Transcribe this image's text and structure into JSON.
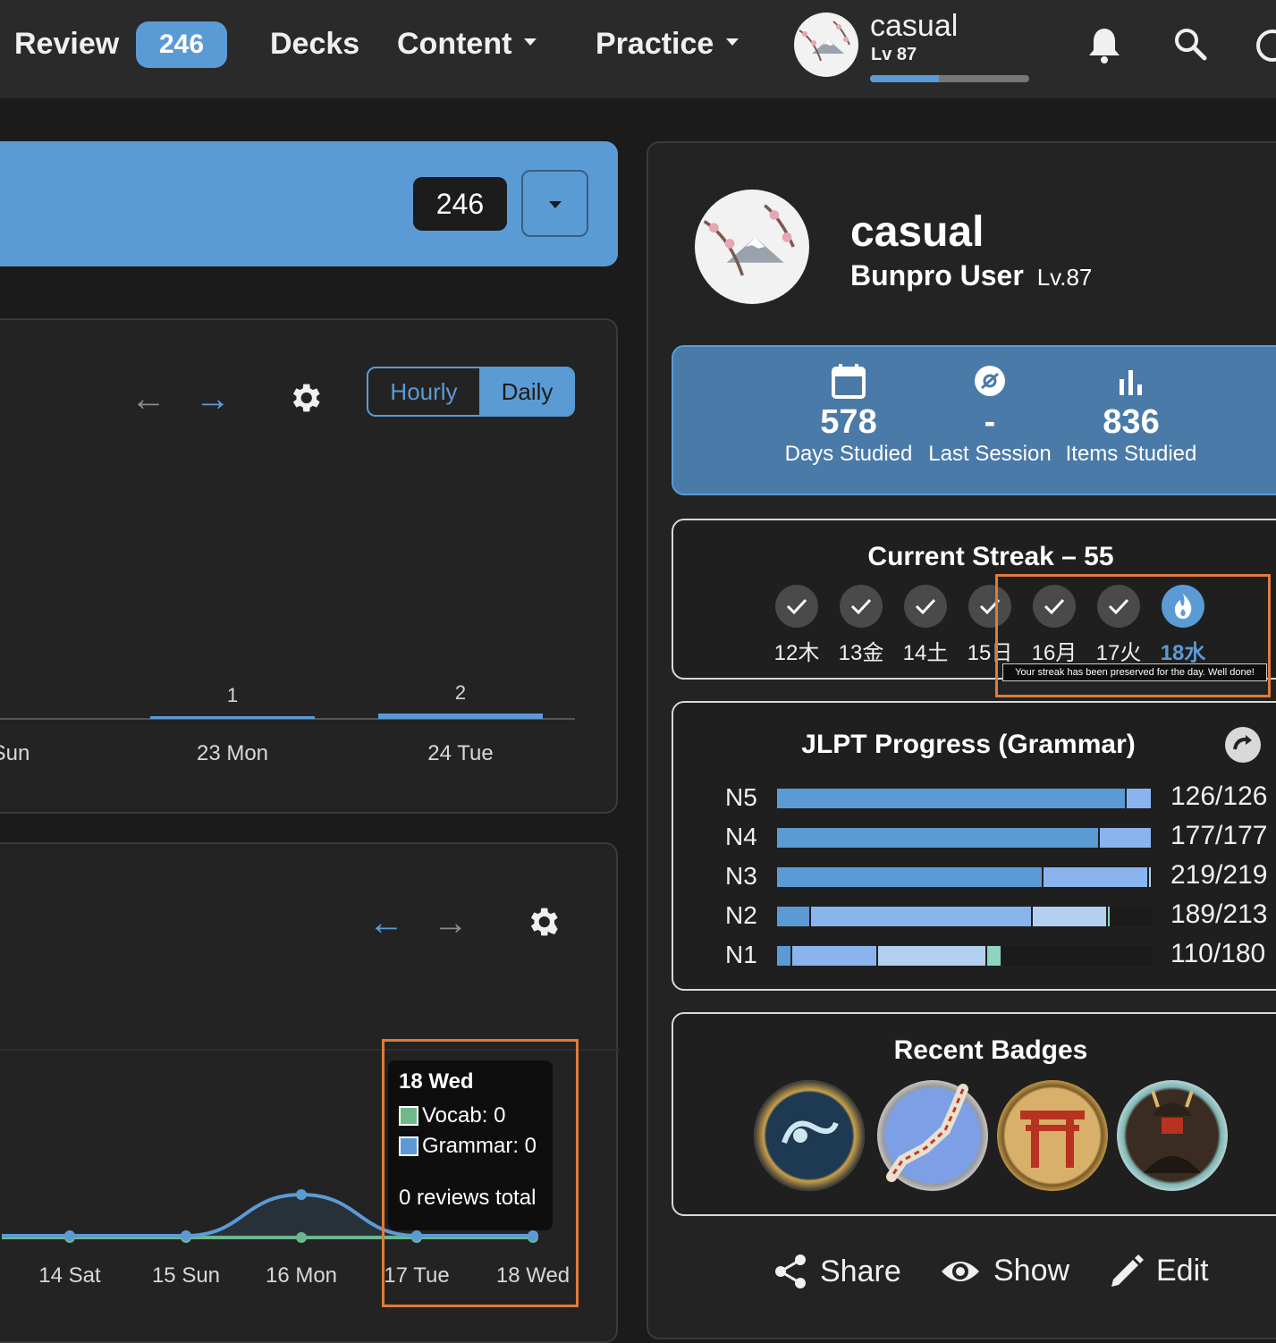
{
  "nav": {
    "review_label": "Review",
    "review_count": "246",
    "decks_label": "Decks",
    "content_label": "Content",
    "practice_label": "Practice",
    "user_name": "casual",
    "user_level": "Lv 87",
    "level_progress": 0.43
  },
  "banner": {
    "count": "246"
  },
  "forecast": {
    "toggle_hourly": "Hourly",
    "toggle_daily": "Daily",
    "active_toggle": "Daily"
  },
  "history": {
    "tooltip_title": "18 Wed",
    "tooltip_vocab": "Vocab: 0",
    "tooltip_grammar": "Grammar: 0",
    "tooltip_total": "0 reviews total"
  },
  "chart_data": [
    {
      "type": "bar",
      "categories": [
        "Sun",
        "23 Mon",
        "24 Tue"
      ],
      "values": [
        0,
        1,
        2
      ],
      "data_labels": [
        "",
        "1",
        "2"
      ]
    },
    {
      "type": "line",
      "x": [
        "14 Sat",
        "15 Sun",
        "16 Mon",
        "17 Tue",
        "18 Wed"
      ],
      "series": [
        {
          "name": "Vocab",
          "values": [
            0,
            0,
            0,
            0,
            0
          ],
          "color": "#6fb88a"
        },
        {
          "name": "Grammar",
          "values": [
            0,
            0,
            1,
            0,
            0
          ],
          "color": "#5b9bd5"
        }
      ]
    }
  ],
  "profile": {
    "name": "casual",
    "subtitle": "Bunpro User",
    "level": "Lv.87",
    "stats": [
      {
        "value": "578",
        "label": "Days Studied",
        "icon": "calendar-icon"
      },
      {
        "value": "-",
        "label": "Last Session",
        "icon": "clock-icon"
      },
      {
        "value": "836",
        "label": "Items Studied",
        "icon": "bar-chart-icon"
      }
    ]
  },
  "streak": {
    "title": "Current Streak – 55",
    "days": [
      {
        "label": "12木",
        "state": "done"
      },
      {
        "label": "13金",
        "state": "done"
      },
      {
        "label": "14土",
        "state": "done"
      },
      {
        "label": "15日",
        "state": "done"
      },
      {
        "label": "16月",
        "state": "done"
      },
      {
        "label": "17火",
        "state": "done"
      },
      {
        "label": "18水",
        "state": "today"
      }
    ],
    "tooltip": "Your streak has been preserved for the day. Well done!"
  },
  "jlpt": {
    "title": "JLPT Progress (Grammar)",
    "levels": [
      {
        "level": "N5",
        "count": "126/126",
        "segments": [
          0.93,
          0.07,
          0,
          0
        ]
      },
      {
        "level": "N4",
        "count": "177/177",
        "segments": [
          0.86,
          0.14,
          0,
          0
        ]
      },
      {
        "level": "N3",
        "count": "219/219",
        "segments": [
          0.71,
          0.28,
          0.01,
          0
        ]
      },
      {
        "level": "N2",
        "count": "189/213",
        "segments": [
          0.09,
          0.59,
          0.2,
          0.01
        ]
      },
      {
        "level": "N1",
        "count": "110/180",
        "segments": [
          0.04,
          0.23,
          0.29,
          0.04
        ]
      }
    ],
    "colors": [
      "#5b9bd5",
      "#8ab4ee",
      "#b3d0f0",
      "#8fd3c0"
    ]
  },
  "badges": {
    "title": "Recent Badges",
    "items": [
      "wave-badge-icon",
      "japan-map-badge-icon",
      "torii-badge-icon",
      "samurai-badge-icon"
    ]
  },
  "actions": {
    "share": "Share",
    "show": "Show",
    "edit": "Edit"
  }
}
